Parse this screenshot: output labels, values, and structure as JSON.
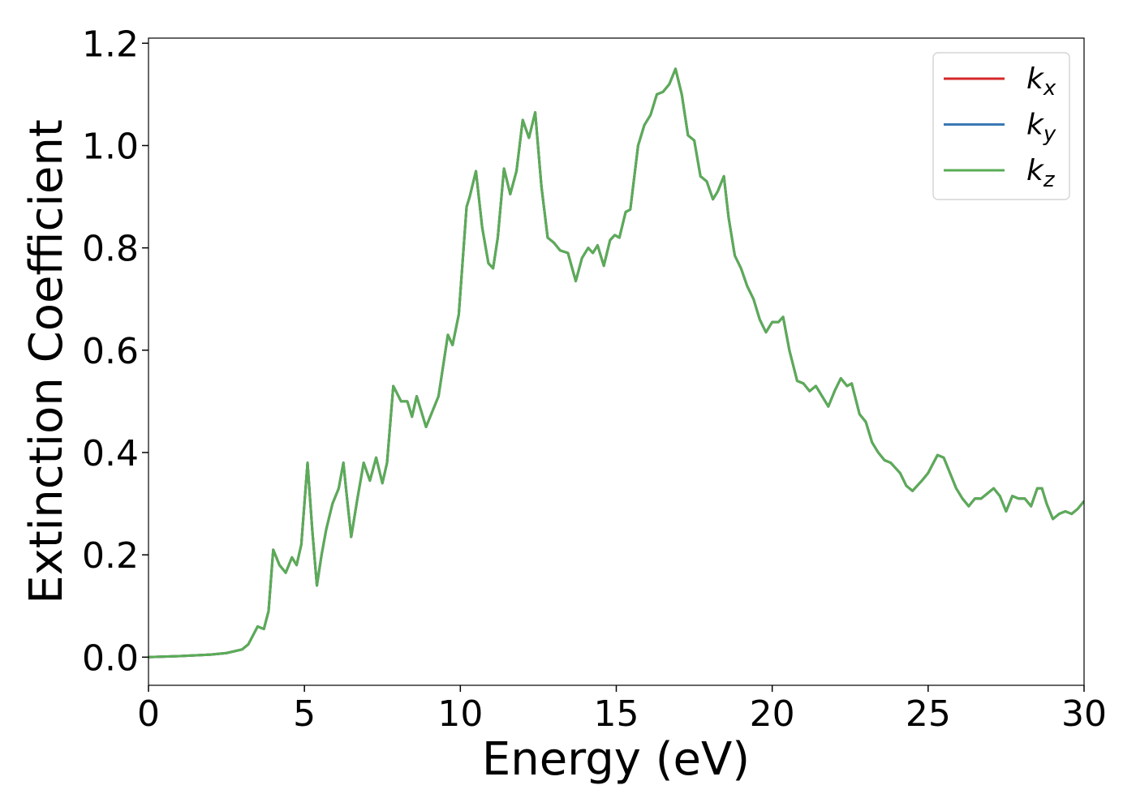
{
  "chart_data": {
    "type": "line",
    "xlabel": "Energy (eV)",
    "ylabel": "Extinction Coefficient",
    "xlim": [
      0,
      30
    ],
    "xticks": [
      0,
      5,
      10,
      15,
      20,
      25,
      30
    ],
    "ylim": [
      -0.055,
      1.21
    ],
    "yticks": [
      {
        "value": 0,
        "label": "0.0"
      },
      0.2,
      0.4,
      0.6,
      0.8,
      {
        "value": 1,
        "label": "1.0"
      },
      1.2
    ],
    "legend": "upper right",
    "x": [
      0,
      1,
      2,
      2.5,
      3,
      3.2,
      3.5,
      3.7,
      3.85,
      4.0,
      4.2,
      4.4,
      4.6,
      4.75,
      4.9,
      5.1,
      5.25,
      5.4,
      5.55,
      5.7,
      5.9,
      6.1,
      6.25,
      6.35,
      6.5,
      6.7,
      6.9,
      7.1,
      7.3,
      7.5,
      7.65,
      7.85,
      8.1,
      8.3,
      8.45,
      8.6,
      8.75,
      8.9,
      9.1,
      9.3,
      9.6,
      9.75,
      9.95,
      10.2,
      10.3,
      10.5,
      10.7,
      10.9,
      11.05,
      11.2,
      11.4,
      11.6,
      11.8,
      12.0,
      12.2,
      12.4,
      12.6,
      12.8,
      13.0,
      13.2,
      13.45,
      13.7,
      13.9,
      14.1,
      14.25,
      14.4,
      14.6,
      14.8,
      14.95,
      15.1,
      15.3,
      15.45,
      15.7,
      15.9,
      16.1,
      16.3,
      16.5,
      16.7,
      16.9,
      17.1,
      17.3,
      17.5,
      17.7,
      17.9,
      18.1,
      18.25,
      18.45,
      18.6,
      18.8,
      19.0,
      19.2,
      19.4,
      19.6,
      19.8,
      20.0,
      20.2,
      20.35,
      20.55,
      20.8,
      21.0,
      21.2,
      21.4,
      21.6,
      21.8,
      22.0,
      22.2,
      22.4,
      22.55,
      22.8,
      23.0,
      23.2,
      23.4,
      23.6,
      23.8,
      24.1,
      24.3,
      24.5,
      24.8,
      25.0,
      25.3,
      25.5,
      25.7,
      25.9,
      26.1,
      26.3,
      26.5,
      26.7,
      26.9,
      27.1,
      27.3,
      27.5,
      27.7,
      27.9,
      28.1,
      28.3,
      28.5,
      28.65,
      28.8,
      29.0,
      29.2,
      29.4,
      29.6,
      29.8,
      30
    ],
    "series": [
      {
        "name": "kx",
        "color": "#d62728",
        "values": [
          0,
          0.002,
          0.005,
          0.008,
          0.015,
          0.025,
          0.06,
          0.055,
          0.09,
          0.21,
          0.18,
          0.165,
          0.195,
          0.18,
          0.22,
          0.38,
          0.25,
          0.14,
          0.2,
          0.25,
          0.3,
          0.33,
          0.38,
          0.32,
          0.235,
          0.31,
          0.38,
          0.345,
          0.39,
          0.34,
          0.38,
          0.53,
          0.5,
          0.5,
          0.47,
          0.51,
          0.48,
          0.45,
          0.48,
          0.51,
          0.63,
          0.61,
          0.67,
          0.88,
          0.9,
          0.95,
          0.84,
          0.77,
          0.76,
          0.82,
          0.955,
          0.905,
          0.95,
          1.05,
          1.015,
          1.065,
          0.92,
          0.82,
          0.81,
          0.795,
          0.79,
          0.735,
          0.78,
          0.8,
          0.79,
          0.805,
          0.765,
          0.815,
          0.825,
          0.82,
          0.87,
          0.875,
          1.0,
          1.04,
          1.06,
          1.1,
          1.105,
          1.12,
          1.15,
          1.1,
          1.02,
          1.01,
          0.94,
          0.93,
          0.895,
          0.91,
          0.94,
          0.86,
          0.785,
          0.76,
          0.725,
          0.7,
          0.66,
          0.635,
          0.655,
          0.655,
          0.665,
          0.6,
          0.54,
          0.535,
          0.52,
          0.53,
          0.51,
          0.49,
          0.52,
          0.545,
          0.53,
          0.535,
          0.475,
          0.46,
          0.42,
          0.4,
          0.385,
          0.38,
          0.36,
          0.335,
          0.325,
          0.345,
          0.36,
          0.395,
          0.39,
          0.36,
          0.33,
          0.31,
          0.295,
          0.31,
          0.31,
          0.32,
          0.33,
          0.315,
          0.285,
          0.315,
          0.31,
          0.31,
          0.295,
          0.33,
          0.33,
          0.3,
          0.27,
          0.28,
          0.285,
          0.28,
          0.29,
          0.305
        ]
      },
      {
        "name": "ky",
        "color": "#3b78b4",
        "values": [
          0,
          0.002,
          0.005,
          0.008,
          0.015,
          0.025,
          0.06,
          0.055,
          0.09,
          0.21,
          0.18,
          0.165,
          0.195,
          0.18,
          0.22,
          0.38,
          0.25,
          0.14,
          0.2,
          0.25,
          0.3,
          0.33,
          0.38,
          0.32,
          0.235,
          0.31,
          0.38,
          0.345,
          0.39,
          0.34,
          0.38,
          0.53,
          0.5,
          0.5,
          0.47,
          0.51,
          0.48,
          0.45,
          0.48,
          0.51,
          0.63,
          0.61,
          0.67,
          0.88,
          0.9,
          0.95,
          0.84,
          0.77,
          0.76,
          0.82,
          0.955,
          0.905,
          0.95,
          1.05,
          1.015,
          1.065,
          0.92,
          0.82,
          0.81,
          0.795,
          0.79,
          0.735,
          0.78,
          0.8,
          0.79,
          0.805,
          0.765,
          0.815,
          0.825,
          0.82,
          0.87,
          0.875,
          1.0,
          1.04,
          1.06,
          1.1,
          1.105,
          1.12,
          1.15,
          1.1,
          1.02,
          1.01,
          0.94,
          0.93,
          0.895,
          0.91,
          0.94,
          0.86,
          0.785,
          0.76,
          0.725,
          0.7,
          0.66,
          0.635,
          0.655,
          0.655,
          0.665,
          0.6,
          0.54,
          0.535,
          0.52,
          0.53,
          0.51,
          0.49,
          0.52,
          0.545,
          0.53,
          0.535,
          0.475,
          0.46,
          0.42,
          0.4,
          0.385,
          0.38,
          0.36,
          0.335,
          0.325,
          0.345,
          0.36,
          0.395,
          0.39,
          0.36,
          0.33,
          0.31,
          0.295,
          0.31,
          0.31,
          0.32,
          0.33,
          0.315,
          0.285,
          0.315,
          0.31,
          0.31,
          0.295,
          0.33,
          0.33,
          0.3,
          0.27,
          0.28,
          0.285,
          0.28,
          0.29,
          0.305
        ]
      },
      {
        "name": "kz",
        "color": "#5aac56",
        "values": [
          0,
          0.002,
          0.005,
          0.008,
          0.015,
          0.025,
          0.06,
          0.055,
          0.09,
          0.21,
          0.18,
          0.165,
          0.195,
          0.18,
          0.22,
          0.38,
          0.25,
          0.14,
          0.2,
          0.25,
          0.3,
          0.33,
          0.38,
          0.32,
          0.235,
          0.31,
          0.38,
          0.345,
          0.39,
          0.34,
          0.38,
          0.53,
          0.5,
          0.5,
          0.47,
          0.51,
          0.48,
          0.45,
          0.48,
          0.51,
          0.63,
          0.61,
          0.67,
          0.88,
          0.9,
          0.95,
          0.84,
          0.77,
          0.76,
          0.82,
          0.955,
          0.905,
          0.95,
          1.05,
          1.015,
          1.065,
          0.92,
          0.82,
          0.81,
          0.795,
          0.79,
          0.735,
          0.78,
          0.8,
          0.79,
          0.805,
          0.765,
          0.815,
          0.825,
          0.82,
          0.87,
          0.875,
          1.0,
          1.04,
          1.06,
          1.1,
          1.105,
          1.12,
          1.15,
          1.1,
          1.02,
          1.01,
          0.94,
          0.93,
          0.895,
          0.91,
          0.94,
          0.86,
          0.785,
          0.76,
          0.725,
          0.7,
          0.66,
          0.635,
          0.655,
          0.655,
          0.665,
          0.6,
          0.54,
          0.535,
          0.52,
          0.53,
          0.51,
          0.49,
          0.52,
          0.545,
          0.53,
          0.535,
          0.475,
          0.46,
          0.42,
          0.4,
          0.385,
          0.38,
          0.36,
          0.335,
          0.325,
          0.345,
          0.36,
          0.395,
          0.39,
          0.36,
          0.33,
          0.31,
          0.295,
          0.31,
          0.31,
          0.32,
          0.33,
          0.315,
          0.285,
          0.315,
          0.31,
          0.31,
          0.295,
          0.33,
          0.33,
          0.3,
          0.27,
          0.28,
          0.285,
          0.28,
          0.29,
          0.305
        ]
      }
    ]
  }
}
